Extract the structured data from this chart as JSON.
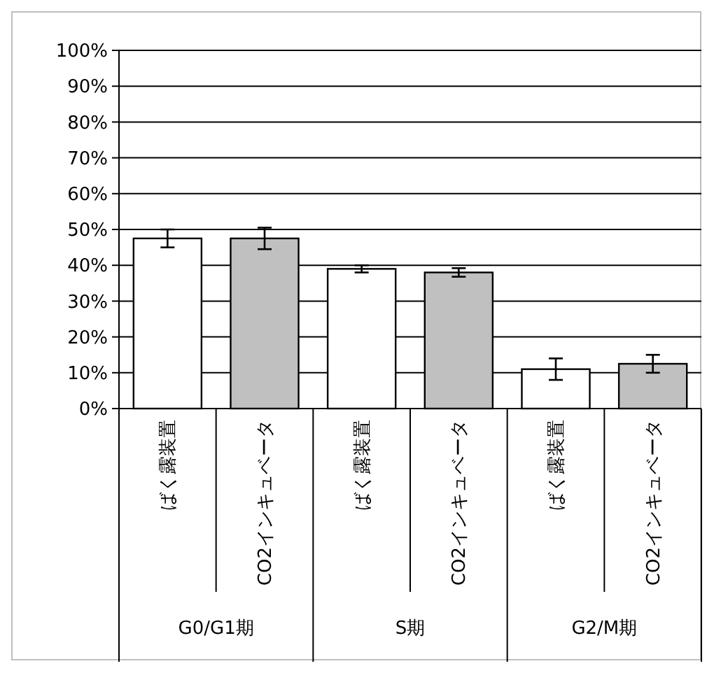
{
  "chart_data": {
    "type": "bar",
    "categories": [
      "ばく露装置",
      "CO2インキュベータ",
      "ばく露装置",
      "CO2インキュベータ",
      "ばく露装置",
      "CO2インキュベータ"
    ],
    "values": [
      47.5,
      47.5,
      39,
      38,
      11,
      12.5
    ],
    "colors": [
      "#ffffff",
      "#c0c0c0",
      "#ffffff",
      "#c0c0c0",
      "#ffffff",
      "#c0c0c0"
    ],
    "errors": [
      2.5,
      3,
      1,
      1.2,
      3,
      2.5
    ],
    "annotations": [
      "G0/G1期",
      "S期",
      "G2/M期"
    ],
    "ylim": [
      0,
      100
    ],
    "yticks": [
      {
        "value": 0,
        "label": "0%"
      },
      {
        "value": 10,
        "label": "10%"
      },
      {
        "value": 20,
        "label": "20%"
      },
      {
        "value": 30,
        "label": "30%"
      },
      {
        "value": 40,
        "label": "40%"
      },
      {
        "value": 50,
        "label": "50%"
      },
      {
        "value": 60,
        "label": "60%"
      },
      {
        "value": 70,
        "label": "70%"
      },
      {
        "value": 80,
        "label": "80%"
      },
      {
        "value": 90,
        "label": "90%"
      },
      {
        "value": 100,
        "label": "100%"
      }
    ],
    "grid": "y"
  }
}
